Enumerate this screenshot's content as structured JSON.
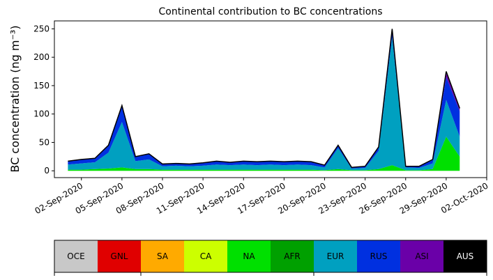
{
  "chart_data": {
    "type": "area",
    "title": "Continental contribution to BC concentrations",
    "ylabel": "BC concentration (ng m⁻³)",
    "x": [
      "2020-09-01",
      "2020-09-02",
      "2020-09-03",
      "2020-09-04",
      "2020-09-05",
      "2020-09-06",
      "2020-09-07",
      "2020-09-08",
      "2020-09-09",
      "2020-09-10",
      "2020-09-11",
      "2020-09-12",
      "2020-09-13",
      "2020-09-14",
      "2020-09-15",
      "2020-09-16",
      "2020-09-17",
      "2020-09-18",
      "2020-09-19",
      "2020-09-20",
      "2020-09-21",
      "2020-09-22",
      "2020-09-23",
      "2020-09-24",
      "2020-09-25",
      "2020-09-26",
      "2020-09-27",
      "2020-09-28",
      "2020-09-29",
      "2020-09-30"
    ],
    "xlim": [
      "2020-08-31",
      "2020-10-02"
    ],
    "xticks": [
      {
        "value": "2020-09-02",
        "label": "02-Sep-2020"
      },
      {
        "value": "2020-09-05",
        "label": "05-Sep-2020"
      },
      {
        "value": "2020-09-08",
        "label": "08-Sep-2020"
      },
      {
        "value": "2020-09-11",
        "label": "11-Sep-2020"
      },
      {
        "value": "2020-09-14",
        "label": "14-Sep-2020"
      },
      {
        "value": "2020-09-17",
        "label": "17-Sep-2020"
      },
      {
        "value": "2020-09-20",
        "label": "20-Sep-2020"
      },
      {
        "value": "2020-09-23",
        "label": "23-Sep-2020"
      },
      {
        "value": "2020-09-26",
        "label": "26-Sep-2020"
      },
      {
        "value": "2020-09-29",
        "label": "29-Sep-2020"
      },
      {
        "value": "2020-10-02",
        "label": "02-Oct-2020"
      }
    ],
    "ylim": [
      -12,
      264
    ],
    "yticks": [
      0,
      50,
      100,
      150,
      200,
      250
    ],
    "stacked": true,
    "series": [
      {
        "name": "OCE",
        "color": "#c8c8c8",
        "values": [
          0,
          0,
          0,
          0,
          0,
          0,
          0,
          0,
          0,
          0,
          0,
          0,
          0,
          0,
          0,
          0,
          0,
          0,
          0,
          0,
          0,
          0,
          0,
          0,
          0,
          0,
          0,
          0,
          0,
          0
        ]
      },
      {
        "name": "GNL",
        "color": "#e00000",
        "values": [
          0,
          0,
          0,
          0,
          0,
          0,
          0,
          0,
          0,
          0,
          0,
          0,
          0,
          0,
          0,
          0,
          0,
          0,
          0,
          0,
          0,
          0,
          0,
          0,
          0,
          0,
          0,
          0,
          0,
          0
        ]
      },
      {
        "name": "SA",
        "color": "#ffaa00",
        "values": [
          0,
          0,
          0,
          0,
          0,
          0,
          0,
          0,
          0,
          0,
          0,
          0,
          0,
          0,
          0,
          0,
          0,
          0,
          0,
          0,
          0,
          0,
          0,
          0,
          0,
          0,
          0,
          0,
          0,
          0
        ]
      },
      {
        "name": "CA",
        "color": "#ccff00",
        "values": [
          0,
          0,
          0,
          0,
          0,
          0,
          0,
          0,
          0,
          0,
          0,
          0,
          0,
          0,
          0,
          0,
          0,
          0,
          0,
          0,
          0,
          0,
          0,
          0,
          0,
          0,
          0,
          0,
          0,
          0
        ]
      },
      {
        "name": "NA",
        "color": "#00e000",
        "values": [
          2,
          2,
          3,
          4,
          6,
          3,
          3,
          2,
          2,
          2,
          2,
          2,
          2,
          2,
          2,
          2,
          2,
          2,
          2,
          1,
          3,
          1,
          1,
          3,
          10,
          1,
          1,
          3,
          60,
          25
        ]
      },
      {
        "name": "AFR",
        "color": "#00a000",
        "values": [
          0,
          0,
          0,
          0,
          0,
          0,
          0,
          0,
          0,
          0,
          0,
          0,
          0,
          0,
          0,
          0,
          0,
          0,
          0,
          0,
          0,
          0,
          0,
          0,
          0,
          0,
          0,
          0,
          0,
          0
        ]
      },
      {
        "name": "EUR",
        "color": "#00a0c0",
        "values": [
          9,
          11,
          12,
          28,
          80,
          14,
          17,
          6,
          7,
          6,
          7,
          9,
          8,
          9,
          8,
          9,
          8,
          9,
          8,
          5,
          37,
          3,
          4,
          32,
          225,
          5,
          4,
          10,
          65,
          35
        ]
      },
      {
        "name": "RUS",
        "color": "#0030e0",
        "values": [
          6,
          7,
          7,
          13,
          29,
          8,
          10,
          4,
          4,
          4,
          5,
          6,
          5,
          6,
          6,
          6,
          6,
          6,
          6,
          4,
          5,
          2,
          3,
          7,
          15,
          2,
          3,
          7,
          40,
          45
        ]
      },
      {
        "name": "ASI",
        "color": "#6a00a8",
        "values": [
          0,
          0,
          0,
          0,
          0,
          0,
          0,
          0,
          0,
          0,
          0,
          0,
          0,
          0,
          0,
          0,
          0,
          0,
          0,
          0,
          0,
          0,
          0,
          0,
          0,
          0,
          0,
          0,
          10,
          5
        ]
      },
      {
        "name": "AUS",
        "color": "#000000",
        "values": [
          0,
          0,
          0,
          0,
          0,
          0,
          0,
          0,
          0,
          0,
          0,
          0,
          0,
          0,
          0,
          0,
          0,
          0,
          0,
          0,
          0,
          0,
          0,
          0,
          0,
          0,
          0,
          0,
          0,
          0
        ]
      }
    ]
  }
}
